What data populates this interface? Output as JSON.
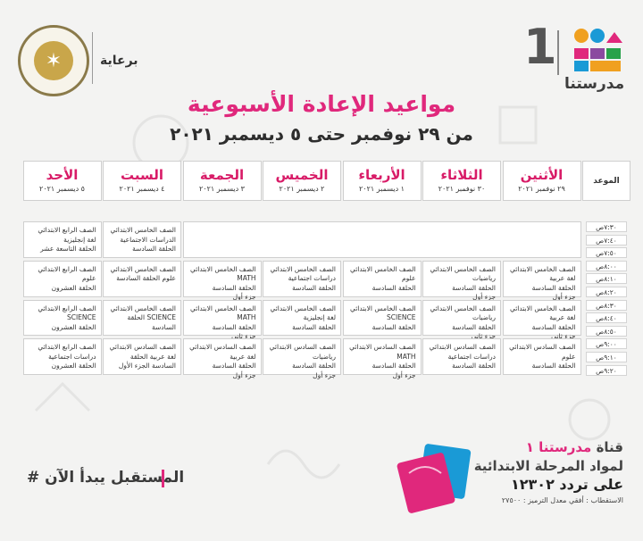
{
  "header": {
    "sponsor_label": "برعاية",
    "logo_number": "1",
    "logo_text": "مدرستنا",
    "title": "مواعيد الإعادة الأسبوعية",
    "subtitle": "من ٢٩ نوفمبر حتى ٥ ديسمبر ٢٠٢١"
  },
  "schedule": {
    "time_header": "الموعد",
    "days": [
      {
        "name": "الأثنين",
        "date": "٢٩ نوفمبر ٢٠٢١"
      },
      {
        "name": "الثلاثاء",
        "date": "٣٠ نوفمبر ٢٠٢١"
      },
      {
        "name": "الأربعاء",
        "date": "١ ديسمبر ٢٠٢١"
      },
      {
        "name": "الخميس",
        "date": "٢ ديسمبر ٢٠٢١"
      },
      {
        "name": "الجمعة",
        "date": "٣ ديسمبر ٢٠٢١"
      },
      {
        "name": "السبت",
        "date": "٤ ديسمبر ٢٠٢١"
      },
      {
        "name": "الأحد",
        "date": "٥ ديسمبر ٢٠٢١"
      }
    ],
    "times": [
      "٧:٣٠ص",
      "٧:٤٠ص",
      "٧:٥٠ص",
      "٨:٠٠ص",
      "٨:١٠ص",
      "٨:٢٠ص",
      "٨:٣٠ص",
      "٨:٤٠ص",
      "٨:٥٠ص",
      "٩:٠٠ص",
      "٩:١٠ص",
      "٩:٢٠ص"
    ],
    "blocks": [
      {
        "day": 5,
        "slot": 0,
        "text": "الصف الخامس الابتدائي\nالدراسات الاجتماعية\nالحلقة السادسة"
      },
      {
        "day": 6,
        "slot": 0,
        "text": "الصف الرابع الابتدائي\nلغة إنجليزية\nالحلقة التاسعة عشر"
      },
      {
        "day": 0,
        "slot": 1,
        "text": "الصف الخامس الابتدائي\nلغة عربية\nالحلقة السادسة\nجزء أول"
      },
      {
        "day": 1,
        "slot": 1,
        "text": "الصف الخامس الابتدائي\nرياضيات\nالحلقة السادسة\nجزء أول"
      },
      {
        "day": 2,
        "slot": 1,
        "text": "الصف الخامس الابتدائي\nعلوم\nالحلقة السادسة"
      },
      {
        "day": 3,
        "slot": 1,
        "text": "الصف الخامس الابتدائي\nدراسات اجتماعية\nالحلقة السادسة"
      },
      {
        "day": 4,
        "slot": 1,
        "text": "الصف الخامس الابتدائي\nMATH\nالحلقة السادسة\nجزء أول"
      },
      {
        "day": 5,
        "slot": 1,
        "text": "الصف الخامس الابتدائي\nعلوم   الحلقة السادسة"
      },
      {
        "day": 6,
        "slot": 1,
        "text": "الصف الرابع الابتدائي\nعلوم\nالحلقة العشرون"
      },
      {
        "day": 0,
        "slot": 2,
        "text": "الصف الخامس الابتدائي\nلغة عربية\nالحلقة السادسة\nجزء ثاني"
      },
      {
        "day": 1,
        "slot": 2,
        "text": "الصف الخامس الابتدائي\nرياضيات\nالحلقة السادسة\nجزء ثاني"
      },
      {
        "day": 2,
        "slot": 2,
        "text": "الصف الخامس الابتدائي\nSCIENCE\nالحلقة السادسة"
      },
      {
        "day": 3,
        "slot": 2,
        "text": "الصف الخامس الابتدائي\nلغة إنجليزية\nالحلقة السادسة"
      },
      {
        "day": 4,
        "slot": 2,
        "text": "الصف الخامس الابتدائي\nMATH\nالحلقة السادسة\nجزء ثاني"
      },
      {
        "day": 5,
        "slot": 2,
        "text": "الصف الخامس الابتدائي\nSCIENCE  الحلقة\nالسادسة"
      },
      {
        "day": 6,
        "slot": 2,
        "text": "الصف الرابع الابتدائي\nSCIENCE\nالحلقة العشرون"
      },
      {
        "day": 0,
        "slot": 3,
        "text": "الصف السادس الابتدائي\nعلوم\nالحلقة السادسة"
      },
      {
        "day": 1,
        "slot": 3,
        "text": "الصف السادس الابتدائي\nدراسات اجتماعية\nالحلقة السادسة"
      },
      {
        "day": 2,
        "slot": 3,
        "text": "الصف السادس الابتدائي\nMATH\nالحلقة السادسة\nجزء أول"
      },
      {
        "day": 3,
        "slot": 3,
        "text": "الصف السادس الابتدائي\nرياضيات\nالحلقة السادسة\nجزء أول"
      },
      {
        "day": 4,
        "slot": 3,
        "text": "الصف السادس الابتدائي\nلغة عربية\nالحلقة السادسة\nجزء أول"
      },
      {
        "day": 5,
        "slot": 3,
        "text": "الصف السادس الابتدائي\nلغة عربية  الحلقة\nالسادسة   الجزء الأول"
      },
      {
        "day": 6,
        "slot": 3,
        "text": "الصف الرابع الابتدائي\nدراسات اجتماعية\nالحلقة العشرون"
      }
    ]
  },
  "footer": {
    "hashtag": "# المستقبل يبدأ الآن",
    "channel_prefix": "قناة",
    "channel_name": "مدرستنا ١",
    "channel_line2": "لمواد المرحلة الابتدائية",
    "channel_line3": "على تردد ١٢٣٠٢",
    "channel_line4": "الاستقطاب : أفقي معدل الترميز : ٢٧٥٠٠"
  },
  "colors": {
    "accent": "#e0287c",
    "text": "#333333"
  },
  "icons": {
    "seal": "ministry-seal-icon",
    "logo": "madrasatna-logo-icon",
    "folders": "folders-icon"
  }
}
